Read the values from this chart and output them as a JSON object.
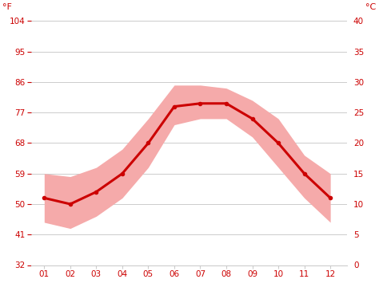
{
  "months": [
    1,
    2,
    3,
    4,
    5,
    6,
    7,
    8,
    9,
    10,
    11,
    12
  ],
  "month_labels": [
    "01",
    "02",
    "03",
    "04",
    "05",
    "06",
    "07",
    "08",
    "09",
    "10",
    "11",
    "12"
  ],
  "avg_temp_c": [
    11,
    10,
    12,
    15,
    20,
    26,
    26.5,
    26.5,
    24,
    20,
    15,
    11
  ],
  "high_temp_c": [
    15,
    14.5,
    16,
    19,
    24,
    29.5,
    29.5,
    29,
    27,
    24,
    18,
    15
  ],
  "low_temp_c": [
    7,
    6,
    8,
    11,
    16,
    23,
    24,
    24,
    21,
    16,
    11,
    7
  ],
  "ylim_c": [
    0,
    40
  ],
  "yticks_c": [
    0,
    5,
    10,
    15,
    20,
    25,
    30,
    35,
    40
  ],
  "ytick_labels_c": [
    "0",
    "5",
    "10",
    "15",
    "20",
    "25",
    "30",
    "35",
    "40"
  ],
  "ytick_labels_f": [
    "32",
    "41",
    "50",
    "59",
    "68",
    "77",
    "86",
    "95",
    "104"
  ],
  "line_color": "#cc0000",
  "band_color": "#f5aaaa",
  "grid_color": "#cccccc",
  "axis_label_color": "#cc0000",
  "background_color": "#ffffff",
  "tick_fontsize": 7.5,
  "label_fontsize": 8
}
